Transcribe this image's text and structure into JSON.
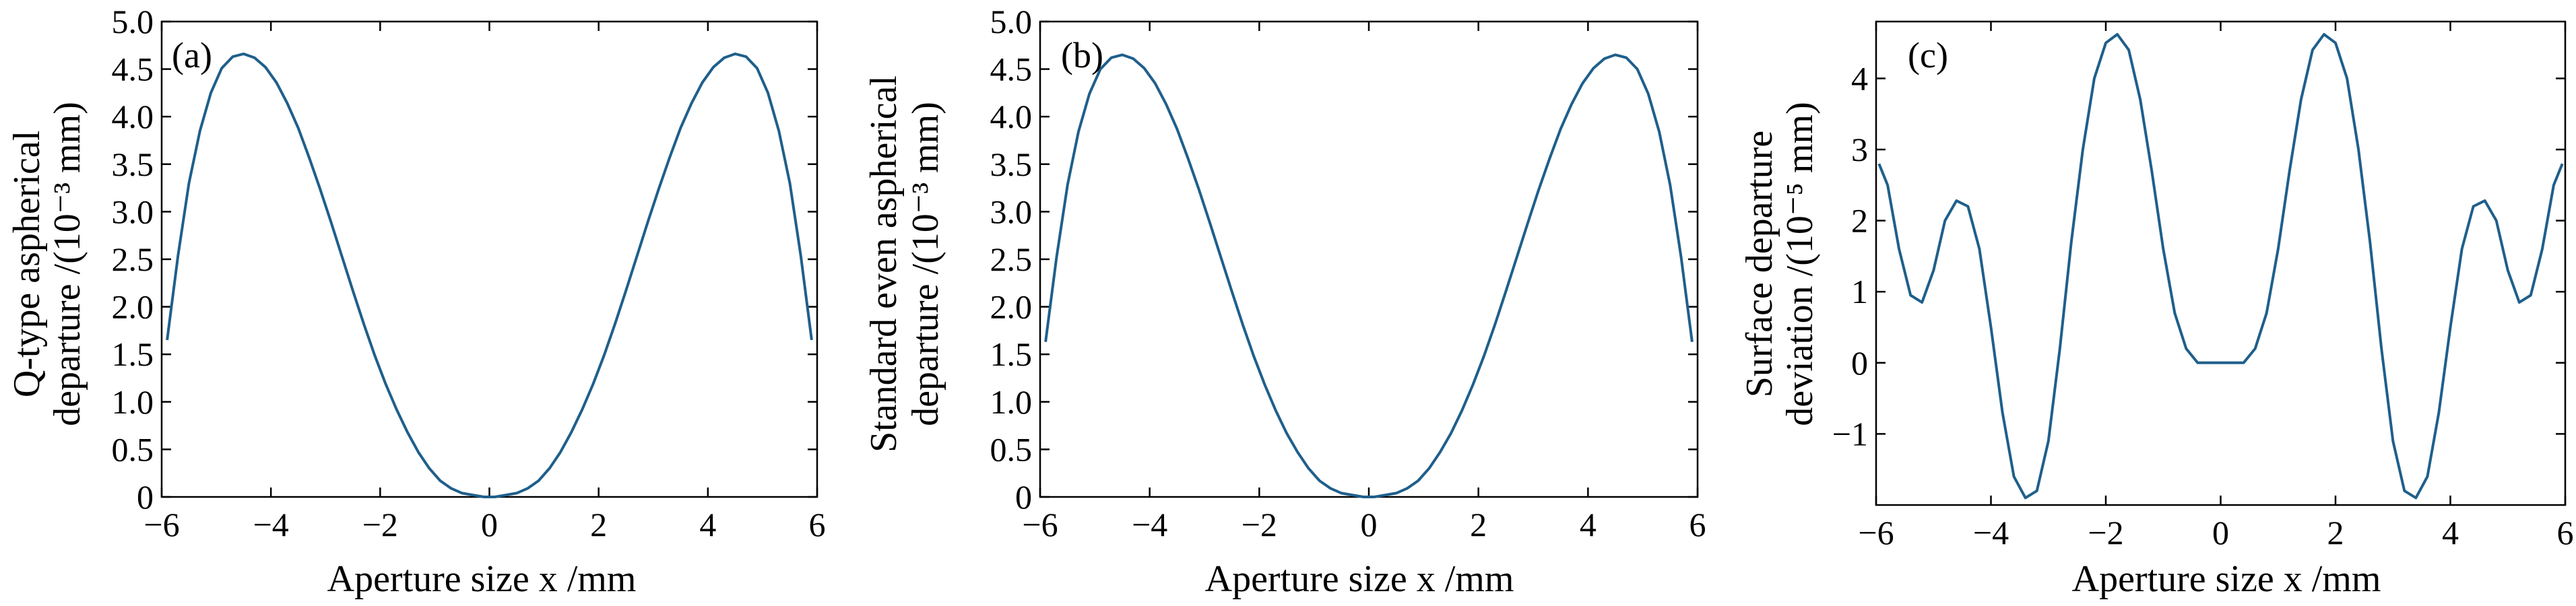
{
  "chart_data": [
    {
      "type": "line",
      "panel_label": "(a)",
      "xlabel": "Aperture size x /mm",
      "ylabel_lines": [
        "Q-type aspherical",
        "departure /(10⁻³ mm)"
      ],
      "xlim": [
        -6,
        6
      ],
      "ylim": [
        0,
        5.0
      ],
      "xticks": [
        -6,
        -4,
        -2,
        0,
        2,
        4,
        6
      ],
      "xtick_labels": [
        "−6",
        "−4",
        "−2",
        "0",
        "2",
        "4",
        "6"
      ],
      "yticks": [
        0,
        0.5,
        1.0,
        1.5,
        2.0,
        2.5,
        3.0,
        3.5,
        4.0,
        4.5,
        5.0
      ],
      "ytick_labels": [
        "0",
        "0.5",
        "1.0",
        "1.5",
        "2.0",
        "2.5",
        "3.0",
        "3.5",
        "4.0",
        "4.5",
        "5.0"
      ],
      "grid": false,
      "series": [
        {
          "color": "#1f5f8b",
          "x": [
            -5.9,
            -5.7,
            -5.5,
            -5.3,
            -5.1,
            -4.9,
            -4.7,
            -4.5,
            -4.3,
            -4.1,
            -3.9,
            -3.7,
            -3.5,
            -3.3,
            -3.1,
            -2.9,
            -2.7,
            -2.5,
            -2.3,
            -2.1,
            -1.9,
            -1.7,
            -1.5,
            -1.3,
            -1.1,
            -0.9,
            -0.7,
            -0.5,
            -0.3,
            -0.1,
            0,
            0.1,
            0.3,
            0.5,
            0.7,
            0.9,
            1.1,
            1.3,
            1.5,
            1.7,
            1.9,
            2.1,
            2.3,
            2.5,
            2.7,
            2.9,
            3.1,
            3.3,
            3.5,
            3.7,
            3.9,
            4.1,
            4.3,
            4.5,
            4.7,
            4.9,
            5.1,
            5.3,
            5.5,
            5.7,
            5.9
          ],
          "y": [
            1.65,
            2.54,
            3.3,
            3.85,
            4.25,
            4.51,
            4.63,
            4.66,
            4.62,
            4.52,
            4.36,
            4.14,
            3.88,
            3.57,
            3.24,
            2.89,
            2.53,
            2.17,
            1.82,
            1.49,
            1.19,
            0.92,
            0.68,
            0.47,
            0.3,
            0.17,
            0.09,
            0.04,
            0.02,
            0.0,
            0.0,
            0.0,
            0.02,
            0.04,
            0.09,
            0.17,
            0.3,
            0.47,
            0.68,
            0.92,
            1.19,
            1.49,
            1.82,
            2.17,
            2.53,
            2.89,
            3.24,
            3.57,
            3.88,
            4.14,
            4.36,
            4.52,
            4.62,
            4.66,
            4.63,
            4.51,
            4.25,
            3.85,
            3.3,
            2.54,
            1.65
          ]
        }
      ]
    },
    {
      "type": "line",
      "panel_label": "(b)",
      "xlabel": "Aperture size x /mm",
      "ylabel_lines": [
        "Standard even aspherical",
        "departure /(10⁻³ mm)"
      ],
      "xlim": [
        -6,
        6
      ],
      "ylim": [
        0,
        5.0
      ],
      "xticks": [
        -6,
        -4,
        -2,
        0,
        2,
        4,
        6
      ],
      "xtick_labels": [
        "−6",
        "−4",
        "−2",
        "0",
        "2",
        "4",
        "6"
      ],
      "yticks": [
        0,
        0.5,
        1.0,
        1.5,
        2.0,
        2.5,
        3.0,
        3.5,
        4.0,
        4.5,
        5.0
      ],
      "ytick_labels": [
        "0",
        "0.5",
        "1.0",
        "1.5",
        "2.0",
        "2.5",
        "3.0",
        "3.5",
        "4.0",
        "4.5",
        "5.0"
      ],
      "grid": false,
      "series": [
        {
          "color": "#1f5f8b",
          "x": [
            -5.9,
            -5.7,
            -5.5,
            -5.3,
            -5.1,
            -4.9,
            -4.7,
            -4.5,
            -4.3,
            -4.1,
            -3.9,
            -3.7,
            -3.5,
            -3.3,
            -3.1,
            -2.9,
            -2.7,
            -2.5,
            -2.3,
            -2.1,
            -1.9,
            -1.7,
            -1.5,
            -1.3,
            -1.1,
            -0.9,
            -0.7,
            -0.5,
            -0.3,
            -0.1,
            0,
            0.1,
            0.3,
            0.5,
            0.7,
            0.9,
            1.1,
            1.3,
            1.5,
            1.7,
            1.9,
            2.1,
            2.3,
            2.5,
            2.7,
            2.9,
            3.1,
            3.3,
            3.5,
            3.7,
            3.9,
            4.1,
            4.3,
            4.5,
            4.7,
            4.9,
            5.1,
            5.3,
            5.5,
            5.7,
            5.9
          ],
          "y": [
            1.63,
            2.52,
            3.28,
            3.84,
            4.24,
            4.5,
            4.62,
            4.65,
            4.61,
            4.51,
            4.35,
            4.13,
            3.87,
            3.56,
            3.23,
            2.88,
            2.52,
            2.16,
            1.81,
            1.48,
            1.18,
            0.91,
            0.67,
            0.47,
            0.3,
            0.17,
            0.09,
            0.04,
            0.02,
            0.0,
            0.0,
            0.0,
            0.02,
            0.04,
            0.09,
            0.17,
            0.3,
            0.47,
            0.67,
            0.91,
            1.18,
            1.48,
            1.81,
            2.16,
            2.52,
            2.88,
            3.23,
            3.56,
            3.87,
            4.13,
            4.35,
            4.51,
            4.61,
            4.65,
            4.62,
            4.5,
            4.24,
            3.84,
            3.28,
            2.52,
            1.63
          ]
        }
      ]
    },
    {
      "type": "line",
      "panel_label": "(c)",
      "xlabel": "Aperture size x /mm",
      "ylabel_lines": [
        "Surface departure",
        "deviation /(10⁻⁵ mm)"
      ],
      "xlim": [
        -6,
        6
      ],
      "ylim": [
        -2.0,
        4.8
      ],
      "xticks": [
        -6,
        -4,
        -2,
        0,
        2,
        4,
        6
      ],
      "xtick_labels": [
        "−6",
        "−4",
        "−2",
        "0",
        "2",
        "4",
        "6"
      ],
      "yticks": [
        -1,
        0,
        1,
        2,
        3,
        4
      ],
      "ytick_labels": [
        "−1",
        "0",
        "1",
        "2",
        "3",
        "4"
      ],
      "grid": false,
      "series": [
        {
          "color": "#1f5f8b",
          "x": [
            -5.95,
            -5.8,
            -5.6,
            -5.4,
            -5.2,
            -5.0,
            -4.8,
            -4.6,
            -4.4,
            -4.2,
            -4.0,
            -3.8,
            -3.6,
            -3.4,
            -3.2,
            -3.0,
            -2.8,
            -2.6,
            -2.4,
            -2.2,
            -2.0,
            -1.8,
            -1.6,
            -1.4,
            -1.2,
            -1.0,
            -0.8,
            -0.6,
            -0.4,
            -0.2,
            0,
            0.2,
            0.4,
            0.6,
            0.8,
            1.0,
            1.2,
            1.4,
            1.6,
            1.8,
            2.0,
            2.2,
            2.4,
            2.6,
            2.8,
            3.0,
            3.2,
            3.4,
            3.6,
            3.8,
            4.0,
            4.2,
            4.4,
            4.6,
            4.8,
            5.0,
            5.2,
            5.4,
            5.6,
            5.8,
            5.95
          ],
          "y": [
            2.8,
            2.5,
            1.6,
            0.95,
            0.85,
            1.3,
            2.0,
            2.28,
            2.2,
            1.6,
            0.5,
            -0.7,
            -1.6,
            -1.9,
            -1.8,
            -1.1,
            0.2,
            1.7,
            3.0,
            4.0,
            4.5,
            4.62,
            4.4,
            3.7,
            2.7,
            1.6,
            0.7,
            0.2,
            0.0,
            0.0,
            0.0,
            0.0,
            0.0,
            0.2,
            0.7,
            1.6,
            2.7,
            3.7,
            4.4,
            4.62,
            4.5,
            4.0,
            3.0,
            1.7,
            0.2,
            -1.1,
            -1.8,
            -1.9,
            -1.6,
            -0.7,
            0.5,
            1.6,
            2.2,
            2.28,
            2.0,
            1.3,
            0.85,
            0.95,
            1.6,
            2.5,
            2.8
          ]
        }
      ]
    }
  ]
}
